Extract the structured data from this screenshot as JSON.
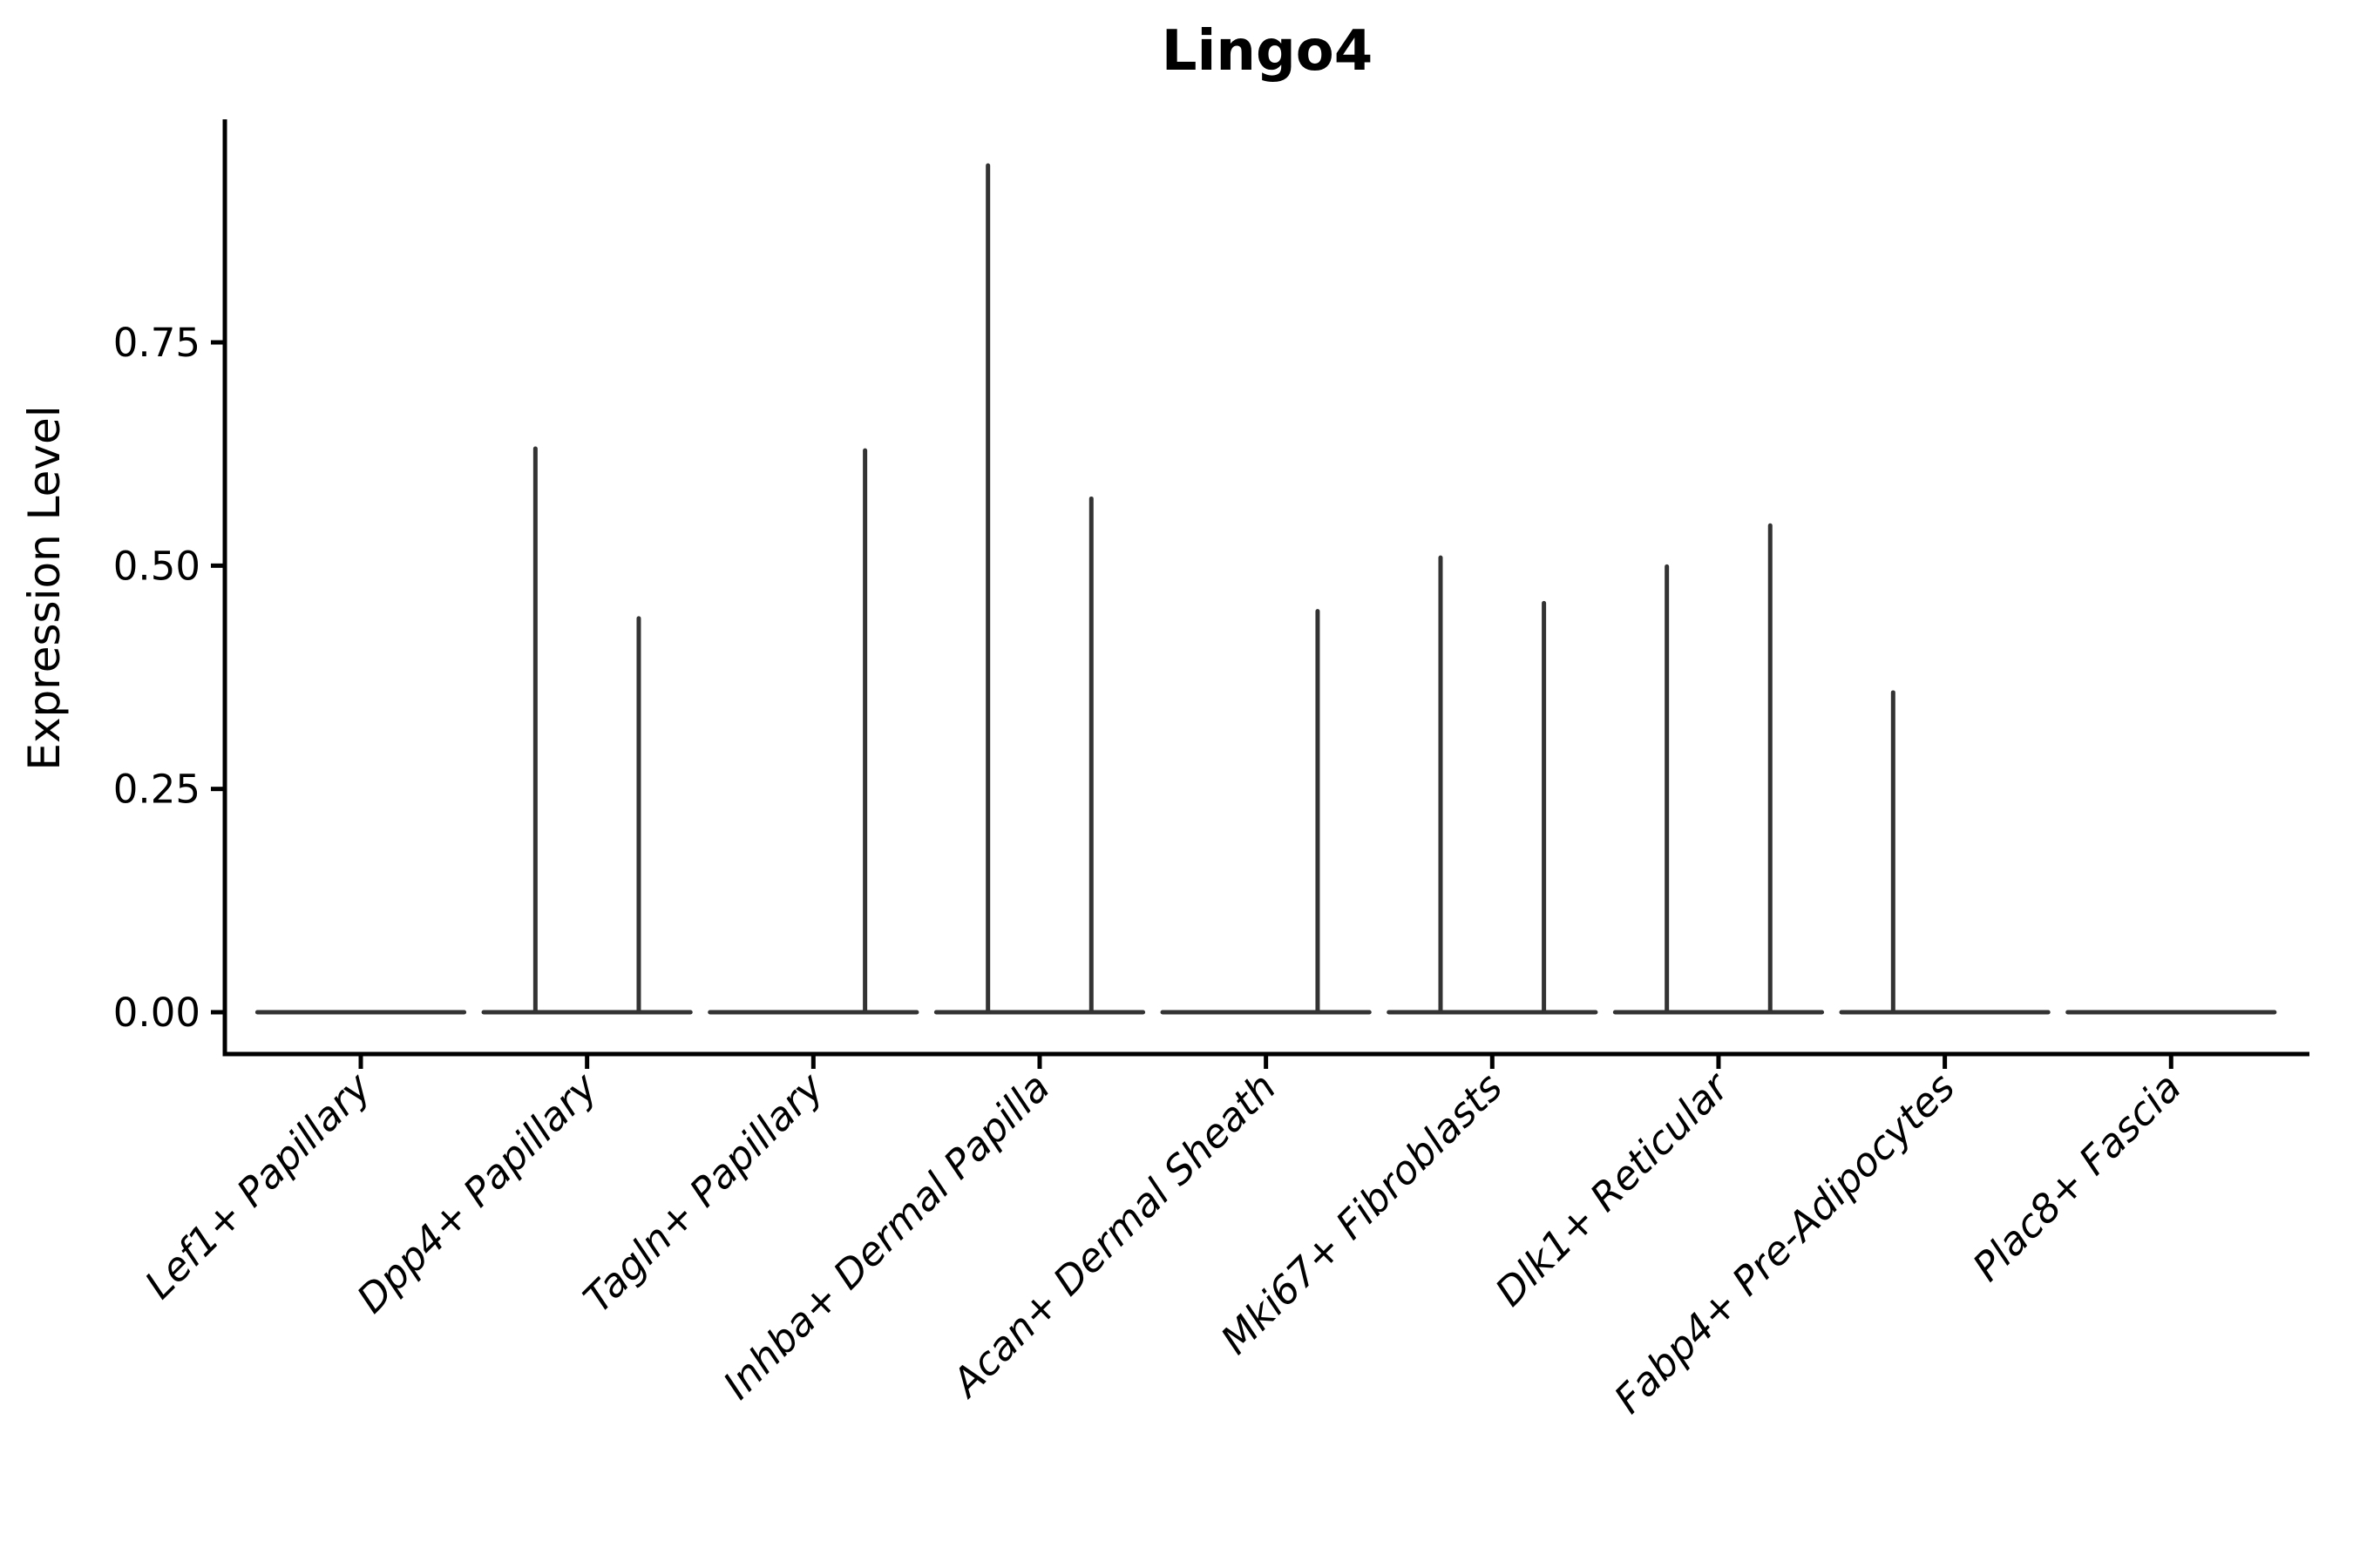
{
  "chart_data": {
    "type": "violin",
    "title": "Lingo4",
    "ylabel": "Expression Level",
    "xlabel": "",
    "categories": [
      "Lef1+ Papillary",
      "Dpp4+ Papillary",
      "Tagln+ Papillary",
      "Inhba+ Dermal Papilla",
      "Acan+ Dermal Sheath",
      "Mki67+ Fibroblasts",
      "Dlk1+ Reticular",
      "Fabp4+ Pre-Adipocytes",
      "Plac8+ Fascia"
    ],
    "violins_per_category": 2,
    "series": [
      {
        "category": "Lef1+ Papillary",
        "max_expression": [
          0,
          0
        ]
      },
      {
        "category": "Dpp4+ Papillary",
        "max_expression": [
          0.631,
          0.441
        ]
      },
      {
        "category": "Tagln+ Papillary",
        "max_expression": [
          0,
          0.629
        ]
      },
      {
        "category": "Inhba+ Dermal Papilla",
        "max_expression": [
          0.948,
          0.575
        ]
      },
      {
        "category": "Acan+ Dermal Sheath",
        "max_expression": [
          0,
          0.449
        ]
      },
      {
        "category": "Mki67+ Fibroblasts",
        "max_expression": [
          0.509,
          0.458
        ]
      },
      {
        "category": "Dlk1+ Reticular",
        "max_expression": [
          0.499,
          0.545
        ]
      },
      {
        "category": "Fabp4+ Pre-Adipocytes",
        "max_expression": [
          0.358,
          0
        ]
      },
      {
        "category": "Plac8+ Fascia",
        "max_expression": [
          0,
          0
        ]
      }
    ],
    "yticks": [
      {
        "value": 0.0,
        "label": "0.00"
      },
      {
        "value": 0.25,
        "label": "0.25"
      },
      {
        "value": 0.5,
        "label": "0.50"
      },
      {
        "value": 0.75,
        "label": "0.75"
      }
    ],
    "ylim": [
      -0.047,
      1.0
    ],
    "grid": false,
    "legend": "none",
    "style": {
      "violin_color": "#333333",
      "axis_color": "#000000",
      "background": "#ffffff",
      "x_labels_italic": true,
      "x_label_rotation_deg": 45,
      "title_bold": true
    }
  }
}
